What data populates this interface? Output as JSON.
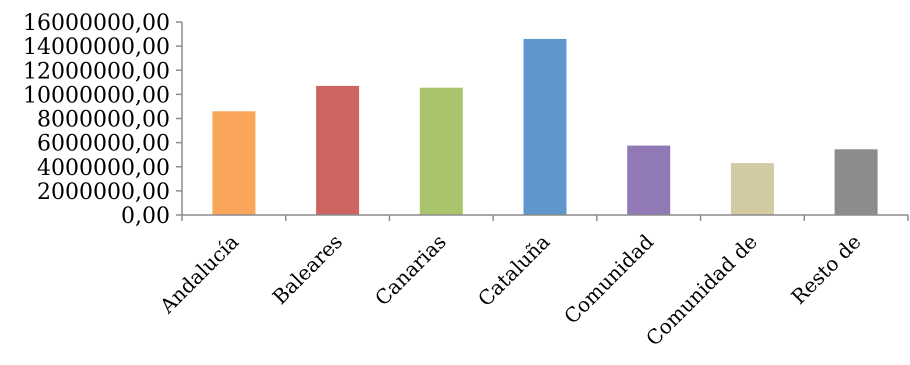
{
  "chart_data": {
    "type": "bar",
    "title": "",
    "xlabel": "",
    "ylabel": "",
    "categories": [
      "Andalucía",
      "Baleares",
      "Canarias",
      "Cataluña",
      "Comunidad",
      "Comunidad de",
      "Resto de"
    ],
    "values": [
      8600000,
      10700000,
      10550000,
      14600000,
      5750000,
      4300000,
      5450000
    ],
    "colors": [
      "#F9A65A",
      "#CD6460",
      "#A9C46B",
      "#5F97CC",
      "#9179B5",
      "#D1CAA2",
      "#8C8C8C"
    ],
    "ylim": [
      0,
      16000000
    ],
    "yticks": [
      {
        "value": 0,
        "label": "0,00"
      },
      {
        "value": 2000000,
        "label": "2000000,00"
      },
      {
        "value": 4000000,
        "label": "4000000,00"
      },
      {
        "value": 6000000,
        "label": "6000000,00"
      },
      {
        "value": 8000000,
        "label": "8000000,00"
      },
      {
        "value": 10000000,
        "label": "10000000,00"
      },
      {
        "value": 12000000,
        "label": "12000000,00"
      },
      {
        "value": 14000000,
        "label": "14000000,00"
      },
      {
        "value": 16000000,
        "label": "16000000,00"
      }
    ],
    "grid": false,
    "legend": "none"
  }
}
